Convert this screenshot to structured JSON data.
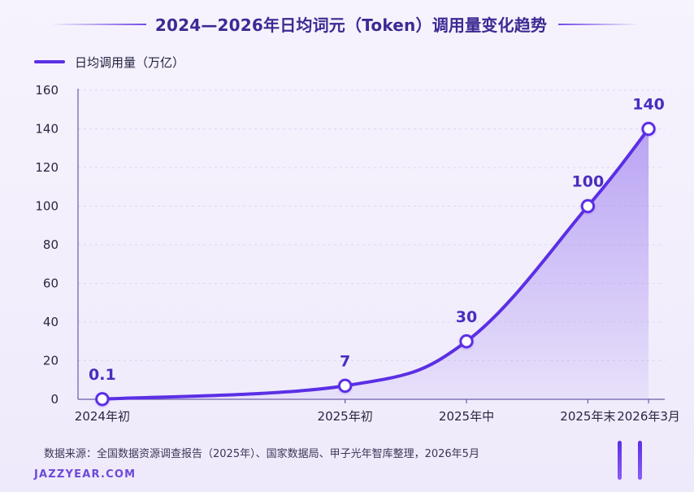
{
  "header": {
    "title": "2024—2026年日均词元（Token）调用量变化趋势"
  },
  "legend": {
    "label": "日均调用量（万亿）"
  },
  "footer": {
    "source": "数据来源：全国数据资源调查报告（2025年）、国家数据局、甲子光年智库整理，2026年5月",
    "brand": "JAZZYEAR.COM"
  },
  "colors": {
    "accent": "#5b2fe5",
    "title": "#3d2a93",
    "background": "#f3f0fb",
    "area": "#a98ef1",
    "labels": "#4a2dbf",
    "grid": "#ddd6f2"
  },
  "chart_data": {
    "type": "line",
    "title": "2024—2026年日均词元（Token）调用量变化趋势",
    "xlabel": "",
    "ylabel": "",
    "x": [
      "2024年初",
      "2025年初",
      "2025年中",
      "2025年末",
      "2026年3月"
    ],
    "x_positions_months": [
      0,
      12,
      18,
      24,
      27
    ],
    "y_ticks": [
      "0",
      "20",
      "40",
      "60",
      "80",
      "100",
      "120",
      "140",
      "160"
    ],
    "ylim": [
      0,
      160
    ],
    "xlim": [
      -1.2,
      27.8
    ],
    "grid": true,
    "legend_position": "top-left",
    "series": [
      {
        "name": "日均调用量（万亿）",
        "values": [
          0.1,
          7,
          30,
          100,
          140
        ],
        "labels": [
          "0.1",
          "7",
          "30",
          "100",
          "140"
        ]
      }
    ]
  }
}
